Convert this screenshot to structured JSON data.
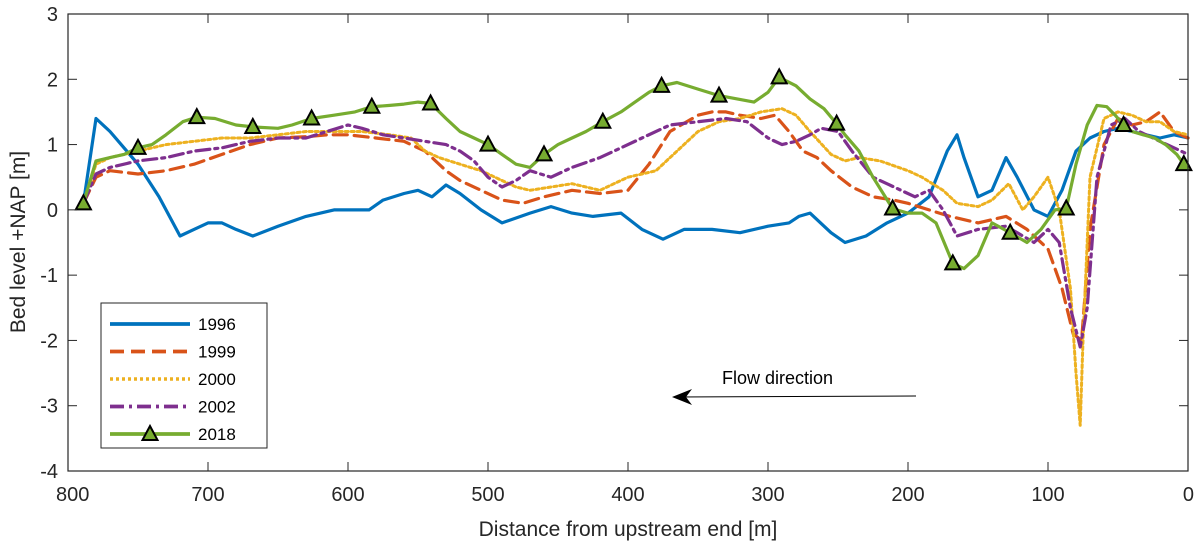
{
  "chart_data": {
    "type": "line",
    "title": "",
    "xlabel": "Distance from upstream end [m]",
    "ylabel": "Bed level +NAP [m]",
    "xlim": [
      800,
      0
    ],
    "ylim": [
      -4,
      3
    ],
    "x_reversed": true,
    "x_ticks": [
      "800",
      "700",
      "600",
      "500",
      "400",
      "300",
      "200",
      "100",
      "0"
    ],
    "y_ticks": [
      "3",
      "2",
      "1",
      "0",
      "-1",
      "-2",
      "-3",
      "-4"
    ],
    "grid": false,
    "legend_position": "bottom-left",
    "annotation": {
      "text": "Flow direction",
      "arrow": "left"
    },
    "series": [
      {
        "name": "1996",
        "color": "#0072BD",
        "style": "solid",
        "marker": "none",
        "x": [
          789,
          780,
          770,
          750,
          735,
          720,
          710,
          700,
          690,
          680,
          668,
          650,
          630,
          610,
          600,
          585,
          575,
          560,
          550,
          540,
          530,
          520,
          505,
          490,
          470,
          455,
          440,
          425,
          405,
          390,
          375,
          360,
          340,
          320,
          300,
          285,
          278,
          270,
          255,
          245,
          230,
          215,
          200,
          185,
          172,
          165,
          160,
          150,
          140,
          130,
          122,
          110,
          100,
          90,
          80,
          70,
          60,
          50,
          40,
          30,
          20,
          10,
          0
        ],
        "y": [
          0.1,
          1.4,
          1.2,
          0.7,
          0.2,
          -0.4,
          -0.3,
          -0.2,
          -0.2,
          -0.3,
          -0.4,
          -0.25,
          -0.1,
          0.0,
          0.0,
          0.0,
          0.15,
          0.25,
          0.3,
          0.2,
          0.38,
          0.25,
          0.0,
          -0.2,
          -0.05,
          0.05,
          -0.05,
          -0.1,
          -0.05,
          -0.3,
          -0.45,
          -0.3,
          -0.3,
          -0.35,
          -0.25,
          -0.2,
          -0.1,
          -0.05,
          -0.35,
          -0.5,
          -0.4,
          -0.2,
          -0.05,
          0.2,
          0.9,
          1.15,
          0.8,
          0.2,
          0.3,
          0.8,
          0.5,
          0.0,
          -0.1,
          0.3,
          0.9,
          1.1,
          1.2,
          1.25,
          1.2,
          1.15,
          1.1,
          1.15,
          1.1
        ]
      },
      {
        "name": "1999",
        "color": "#D95319",
        "style": "dashed",
        "marker": "none",
        "x": [
          789,
          780,
          770,
          750,
          730,
          710,
          690,
          670,
          650,
          630,
          615,
          600,
          580,
          560,
          545,
          540,
          530,
          520,
          505,
          490,
          475,
          460,
          440,
          420,
          400,
          385,
          370,
          350,
          340,
          330,
          320,
          305,
          295,
          285,
          275,
          265,
          255,
          240,
          225,
          210,
          200,
          185,
          170,
          150,
          130,
          115,
          100,
          90,
          82,
          76,
          70,
          60,
          50,
          40,
          30,
          20,
          10,
          0
        ],
        "y": [
          0.1,
          0.5,
          0.6,
          0.55,
          0.6,
          0.7,
          0.85,
          1.0,
          1.1,
          1.12,
          1.15,
          1.15,
          1.1,
          1.05,
          0.9,
          0.8,
          0.6,
          0.45,
          0.3,
          0.15,
          0.1,
          0.2,
          0.3,
          0.25,
          0.3,
          0.7,
          1.2,
          1.45,
          1.5,
          1.5,
          1.45,
          1.4,
          1.45,
          1.2,
          0.9,
          0.8,
          0.6,
          0.35,
          0.2,
          0.15,
          0.1,
          0.0,
          -0.1,
          -0.2,
          -0.1,
          -0.3,
          -0.6,
          -1.2,
          -1.9,
          -2.0,
          -0.3,
          1.0,
          1.4,
          1.3,
          1.35,
          1.5,
          1.2,
          1.1
        ]
      },
      {
        "name": "2000",
        "color": "#EDB120",
        "style": "dotted",
        "marker": "none",
        "x": [
          789,
          780,
          770,
          750,
          730,
          710,
          690,
          670,
          650,
          630,
          610,
          590,
          570,
          555,
          545,
          535,
          520,
          505,
          490,
          480,
          470,
          455,
          440,
          420,
          410,
          400,
          390,
          380,
          365,
          350,
          335,
          320,
          305,
          290,
          280,
          270,
          255,
          245,
          235,
          220,
          200,
          190,
          175,
          165,
          150,
          140,
          128,
          118,
          110,
          100,
          92,
          84,
          80,
          77,
          75,
          70,
          60,
          50,
          40,
          30,
          20,
          10,
          0
        ],
        "y": [
          0.1,
          0.7,
          0.8,
          0.9,
          1.0,
          1.05,
          1.1,
          1.1,
          1.15,
          1.2,
          1.2,
          1.2,
          1.15,
          1.1,
          0.9,
          0.8,
          0.7,
          0.6,
          0.45,
          0.35,
          0.3,
          0.35,
          0.4,
          0.3,
          0.4,
          0.5,
          0.55,
          0.6,
          0.9,
          1.2,
          1.35,
          1.4,
          1.5,
          1.55,
          1.45,
          1.2,
          0.85,
          0.75,
          0.8,
          0.75,
          0.6,
          0.5,
          0.3,
          0.1,
          0.05,
          0.15,
          0.4,
          0.0,
          0.2,
          0.5,
          0.0,
          -1.2,
          -2.5,
          -3.3,
          -2.0,
          0.5,
          1.4,
          1.5,
          1.45,
          1.35,
          1.35,
          1.2,
          1.15
        ]
      },
      {
        "name": "2002",
        "color": "#7E2F8E",
        "style": "dashdot",
        "marker": "none",
        "x": [
          789,
          780,
          770,
          750,
          730,
          710,
          690,
          670,
          650,
          630,
          615,
          600,
          590,
          575,
          560,
          545,
          530,
          520,
          510,
          500,
          490,
          480,
          470,
          455,
          440,
          420,
          405,
          390,
          370,
          350,
          330,
          315,
          300,
          290,
          280,
          270,
          262,
          250,
          240,
          225,
          205,
          195,
          185,
          175,
          165,
          150,
          130,
          110,
          100,
          92,
          84,
          77,
          72,
          65,
          55,
          45,
          35,
          25,
          15,
          5,
          0
        ],
        "y": [
          0.1,
          0.55,
          0.65,
          0.75,
          0.8,
          0.9,
          0.95,
          1.05,
          1.1,
          1.1,
          1.2,
          1.3,
          1.25,
          1.15,
          1.1,
          1.05,
          1.0,
          0.9,
          0.75,
          0.5,
          0.35,
          0.45,
          0.6,
          0.5,
          0.65,
          0.8,
          0.95,
          1.1,
          1.3,
          1.35,
          1.4,
          1.35,
          1.1,
          1.0,
          1.05,
          1.15,
          1.25,
          1.2,
          0.9,
          0.5,
          0.3,
          0.2,
          0.3,
          0.0,
          -0.4,
          -0.3,
          -0.25,
          -0.5,
          -0.3,
          -0.5,
          -1.5,
          -2.1,
          -1.5,
          0.5,
          1.3,
          1.4,
          1.2,
          1.1,
          1.0,
          0.9,
          0.85
        ]
      },
      {
        "name": "2018",
        "color": "#77AC30",
        "style": "solid",
        "marker": "triangle",
        "x": [
          789,
          780,
          770,
          760,
          750,
          740,
          730,
          718,
          708,
          695,
          680,
          668,
          650,
          640,
          626,
          610,
          595,
          583,
          570,
          560,
          550,
          541,
          530,
          520,
          510,
          500,
          490,
          480,
          470,
          460,
          450,
          440,
          430,
          418,
          405,
          395,
          385,
          376,
          365,
          350,
          335,
          322,
          310,
          300,
          292,
          280,
          270,
          260,
          251,
          245,
          235,
          225,
          211,
          200,
          190,
          180,
          168,
          160,
          150,
          140,
          127,
          115,
          105,
          95,
          87,
          80,
          72,
          65,
          58,
          52,
          46,
          40,
          32,
          24,
          16,
          8,
          3
        ],
        "y": [
          0.1,
          0.75,
          0.8,
          0.85,
          0.95,
          1.0,
          1.15,
          1.35,
          1.42,
          1.4,
          1.3,
          1.27,
          1.25,
          1.3,
          1.4,
          1.45,
          1.5,
          1.58,
          1.6,
          1.62,
          1.65,
          1.63,
          1.4,
          1.2,
          1.1,
          1.0,
          0.85,
          0.7,
          0.65,
          0.85,
          1.0,
          1.1,
          1.2,
          1.35,
          1.5,
          1.65,
          1.8,
          1.9,
          1.95,
          1.85,
          1.75,
          1.7,
          1.65,
          1.8,
          2.03,
          1.9,
          1.7,
          1.55,
          1.32,
          1.15,
          0.9,
          0.5,
          0.02,
          -0.05,
          -0.05,
          -0.2,
          -0.82,
          -0.9,
          -0.7,
          -0.2,
          -0.35,
          -0.5,
          -0.3,
          0.0,
          0.02,
          0.7,
          1.3,
          1.6,
          1.58,
          1.45,
          1.3,
          1.2,
          1.15,
          1.1,
          1.0,
          0.85,
          0.7
        ]
      }
    ],
    "marker_points_2018": {
      "x": [
        789,
        750,
        708,
        668,
        626,
        583,
        541,
        500,
        460,
        418,
        376,
        335,
        292,
        251,
        211,
        168,
        127,
        87,
        46,
        3
      ],
      "y": [
        0.1,
        0.95,
        1.42,
        1.27,
        1.4,
        1.58,
        1.63,
        1.0,
        0.85,
        1.35,
        1.9,
        1.75,
        2.03,
        1.32,
        0.02,
        -0.82,
        -0.35,
        0.02,
        1.3,
        0.7
      ]
    }
  }
}
